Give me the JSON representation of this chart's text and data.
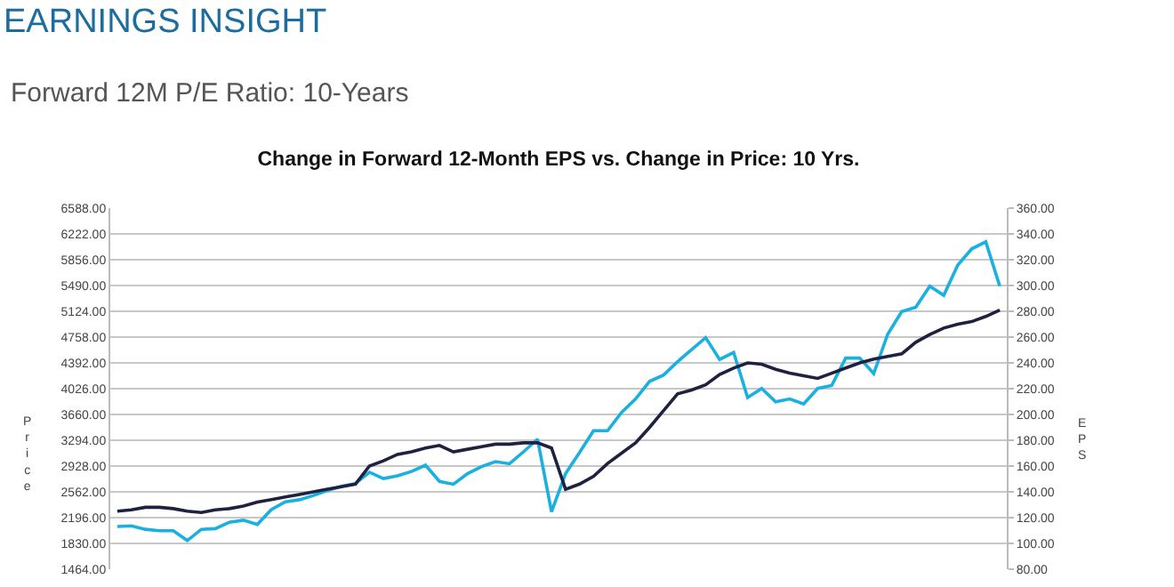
{
  "chart_data": {
    "type": "line",
    "title": "Change in Forward 12-Month EPS vs. Change in Price: 10 Yrs.",
    "subtitle": "Forward 12M P/E Ratio: 10-Years",
    "annotations": [
      "EARNINGS INSIGHT"
    ],
    "ylabel": "Price",
    "y2label": "EPS",
    "categories": [
      null,
      null,
      null,
      null,
      null,
      null,
      null,
      null,
      null,
      null,
      null,
      null,
      null,
      null,
      null,
      null,
      null,
      null,
      null,
      null,
      null,
      null,
      null,
      null,
      null,
      null,
      null,
      null,
      null,
      null,
      null,
      null,
      null,
      null,
      null,
      null,
      null,
      null,
      null,
      null,
      null,
      null,
      null,
      null,
      null,
      null,
      null,
      null,
      null,
      null,
      null,
      null,
      null,
      null,
      null,
      null,
      null,
      null,
      null,
      null,
      null,
      null,
      null,
      null
    ],
    "series": [
      {
        "color": "#1ab0e0",
        "values": [
          2070,
          2080,
          2030,
          2010,
          2010,
          1870,
          2030,
          2040,
          2130,
          2160,
          2100,
          2310,
          2420,
          2450,
          2510,
          2580,
          2640,
          2680,
          2840,
          2750,
          2790,
          2850,
          2940,
          2710,
          2670,
          2820,
          2920,
          2990,
          2960,
          3130,
          3310,
          2280,
          2820,
          3120,
          3430,
          3430,
          3690,
          3880,
          4130,
          4220,
          4410,
          4580,
          4750,
          4440,
          4540,
          3900,
          4030,
          3840,
          3880,
          3810,
          4030,
          4070,
          4460,
          4460,
          4240,
          4800,
          5120,
          5180,
          5480,
          5350,
          5780,
          6010,
          6110,
          5480
        ]
      },
      {
        "color": "#1f2140",
        "axis": "y2",
        "values": [
          125,
          126,
          128,
          128,
          127,
          125,
          124,
          126,
          127,
          129,
          132,
          134,
          136,
          138,
          140,
          142,
          144,
          146,
          160,
          164,
          169,
          171,
          174,
          176,
          171,
          173,
          175,
          177,
          177,
          178,
          178,
          174,
          142,
          146,
          152,
          162,
          170,
          178,
          190,
          203,
          216,
          219,
          223,
          231,
          236,
          240,
          239,
          235,
          232,
          230,
          228,
          232,
          236,
          240,
          243,
          245,
          247,
          256,
          262,
          267,
          270,
          272,
          276,
          281
        ]
      }
    ],
    "ylim": [
      1464,
      6588
    ],
    "yticks": [
      {
        "value": 1464,
        "label": "1464.00"
      },
      {
        "value": 1830,
        "label": "1830.00"
      },
      {
        "value": 2196,
        "label": "2196.00"
      },
      {
        "value": 2562,
        "label": "2562.00"
      },
      {
        "value": 2928,
        "label": "2928.00"
      },
      {
        "value": 3294,
        "label": "3294.00"
      },
      {
        "value": 3660,
        "label": "3660.00"
      },
      {
        "value": 4026,
        "label": "4026.00"
      },
      {
        "value": 4392,
        "label": "4392.00"
      },
      {
        "value": 4758,
        "label": "4758.00"
      },
      {
        "value": 5124,
        "label": "5124.00"
      },
      {
        "value": 5490,
        "label": "5490.00"
      },
      {
        "value": 5856,
        "label": "5856.00"
      },
      {
        "value": 6222,
        "label": "6222.00"
      },
      {
        "value": 6588,
        "label": "6588.00"
      }
    ],
    "y2lim": [
      80,
      360
    ],
    "y2ticks": [
      {
        "value": 80,
        "label": "80.00"
      },
      {
        "value": 100,
        "label": "100.00"
      },
      {
        "value": 120,
        "label": "120.00"
      },
      {
        "value": 140,
        "label": "140.00"
      },
      {
        "value": 160,
        "label": "160.00"
      },
      {
        "value": 180,
        "label": "180.00"
      },
      {
        "value": 200,
        "label": "200.00"
      },
      {
        "value": 220,
        "label": "220.00"
      },
      {
        "value": 240,
        "label": "240.00"
      },
      {
        "value": 260,
        "label": "260.00"
      },
      {
        "value": 280,
        "label": "280.00"
      },
      {
        "value": 300,
        "label": "300.00"
      },
      {
        "value": 320,
        "label": "320.00"
      },
      {
        "value": 340,
        "label": "340.00"
      },
      {
        "value": 360,
        "label": "360.00"
      }
    ],
    "grid": "y"
  }
}
